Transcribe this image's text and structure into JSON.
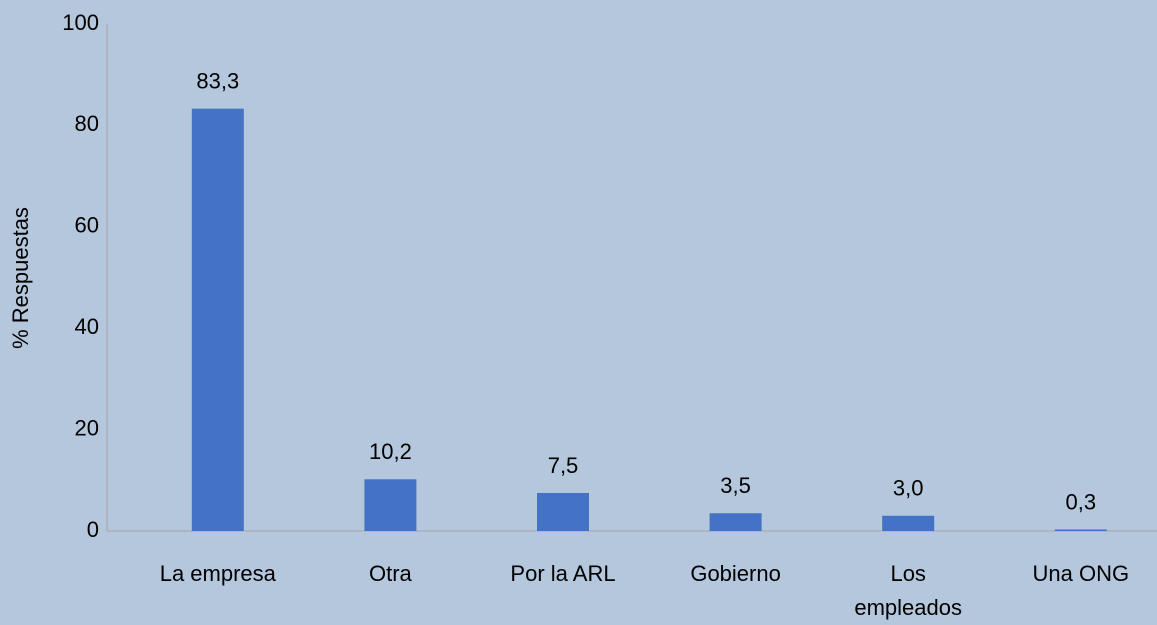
{
  "chart_data": {
    "type": "bar",
    "categories": [
      "La empresa",
      "Otra",
      "Por la ARL",
      "Gobierno",
      "Los empleados",
      "Una ONG"
    ],
    "values": [
      83.3,
      10.2,
      7.5,
      3.5,
      3.0,
      0.3
    ],
    "value_labels": [
      "83,3",
      "10,2",
      "7,5",
      "3,5",
      "3,0",
      "0,3"
    ],
    "color": "#4472c4",
    "y_label": "% Respuestas",
    "ylim": [
      0,
      100
    ],
    "yticks": [
      0,
      20,
      40,
      60,
      80,
      100
    ]
  }
}
